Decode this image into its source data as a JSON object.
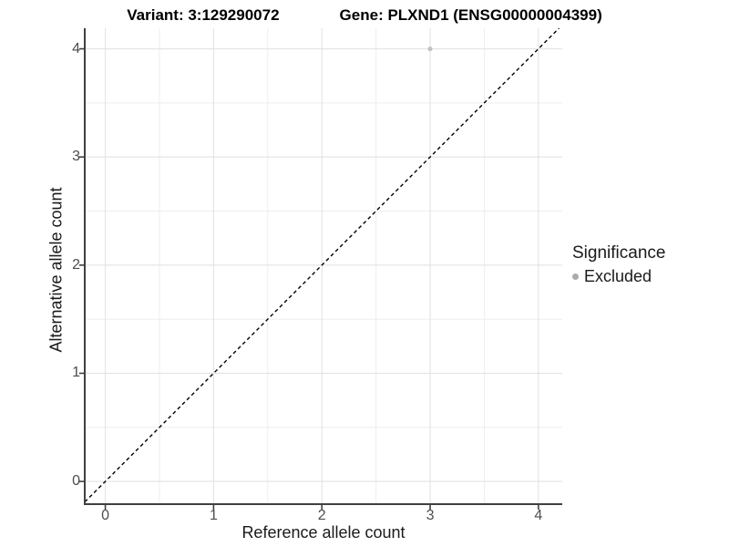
{
  "chart_data": {
    "type": "scatter",
    "title": "Variant: 3:129290072    Gene: PLXND1 (ENSG00000004399)",
    "title_variant": "Variant: 3:129290072",
    "title_gene": "Gene: PLXND1 (ENSG00000004399)",
    "xlabel": "Reference allele count",
    "ylabel": "Alternative allele count",
    "xlim": [
      -0.19,
      4.22
    ],
    "ylim": [
      -0.21,
      4.19
    ],
    "xticks": [
      0,
      1,
      2,
      3,
      4
    ],
    "yticks": [
      0,
      1,
      2,
      3,
      4
    ],
    "minor_ticks_x": [
      0.5,
      1.5,
      2.5,
      3.5
    ],
    "minor_ticks_y": [
      0.5,
      1.5,
      2.5,
      3.5
    ],
    "grid": "on",
    "reference_line": {
      "kind": "identity",
      "slope": 1,
      "intercept": 0,
      "style": "dashed",
      "color": "#000000"
    },
    "series": [
      {
        "name": "Excluded",
        "color": "#c2c2c2",
        "points": [
          {
            "x": 3,
            "y": 4
          }
        ]
      }
    ],
    "legend": {
      "title": "Significance",
      "position": "right",
      "entries": [
        {
          "label": "Excluded",
          "marker": "dot-icon",
          "marker_color": "#ababab"
        }
      ]
    }
  },
  "colors": {
    "background": "#ffffff",
    "grid_major": "#e3e3e3",
    "grid_minor": "#ededed",
    "axis_line": "#404040",
    "tick_mark": "#404040",
    "tick_label": "#4d4d4d",
    "axis_title": "#1a1a1a",
    "plot_title": "#000000",
    "point": "#c2c2c2",
    "legend_marker": "#ababab",
    "reference_line": "#000000"
  }
}
